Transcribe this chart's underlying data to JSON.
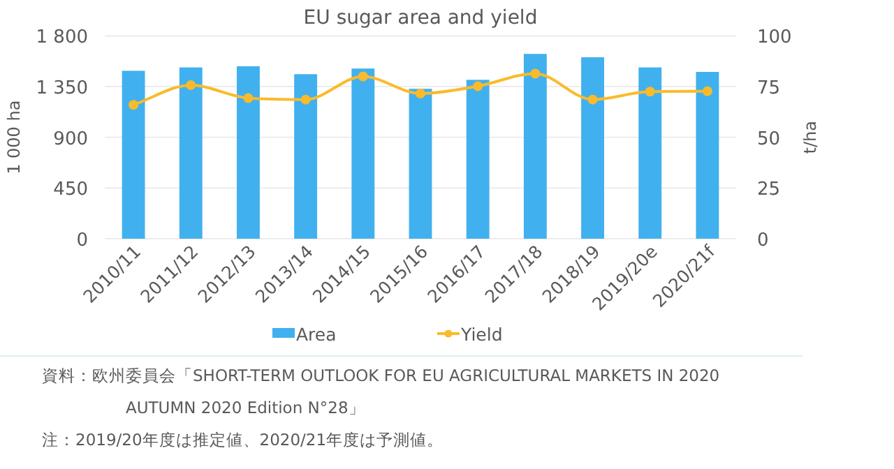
{
  "chart_data": {
    "type": "bar",
    "title": "EU sugar area and yield",
    "ylabel": "1 000 ha",
    "y2label": "t/ha",
    "categories": [
      "2010/11",
      "2011/12",
      "2012/13",
      "2013/14",
      "2014/15",
      "2015/16",
      "2016/17",
      "2017/18",
      "2018/19",
      "2019/20e",
      "2020/21f"
    ],
    "series": [
      {
        "name": "Area",
        "color": "#41b0ee",
        "values": [
          1490,
          1520,
          1530,
          1460,
          1510,
          1330,
          1410,
          1640,
          1610,
          1520,
          1480
        ]
      },
      {
        "name": "Yield",
        "type": "line",
        "axis": "y2",
        "color": "#f9bb2b",
        "values": [
          66,
          75.7,
          69.3,
          68.6,
          80,
          71.6,
          75.2,
          81.4,
          68.6,
          72.5,
          72.7
        ]
      }
    ],
    "ylim": [
      0,
      1800
    ],
    "yticks": [
      0,
      450,
      900,
      {
        "value": 1350,
        "label": "1 350"
      },
      {
        "value": 1800,
        "label": "1 800"
      }
    ],
    "y2lim": [
      0,
      100
    ],
    "y2ticks": [
      0,
      25,
      50,
      75,
      100
    ],
    "grid": "y",
    "legend": "bottom",
    "marker": "circle",
    "annotations": [
      "資料：欧州委員会「SHORT-TERM OUTLOOK FOR EU AGRICULTURAL MARKETS IN 2020 AUTUMN 2020 Edition N°28」",
      "注：2019/20年度は推定値、2020/21年度は予測値。"
    ]
  }
}
